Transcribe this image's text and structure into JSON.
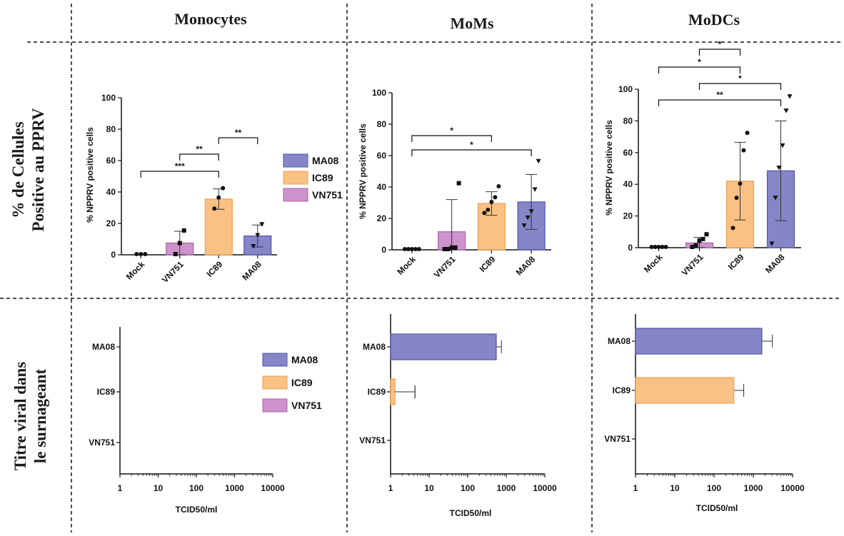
{
  "headers": {
    "columns": [
      "Monocytes",
      "MoMs",
      "MoDCs"
    ],
    "row_top": [
      "% de Cellules",
      "Positive au PPRV"
    ],
    "row_bottom": [
      "Titre viral dans",
      "le surnageant"
    ]
  },
  "colors": {
    "MA08": "#8585c8",
    "IC89": "#f9c184",
    "VN751": "#cc93cc",
    "MA08_edge": "#5555a8",
    "IC89_edge": "#f0a050",
    "VN751_edge": "#a865a8"
  },
  "legend": [
    "MA08",
    "IC89",
    "VN751"
  ],
  "chart_data": [
    {
      "type": "bar",
      "panel": "Monocytes",
      "ylabel": "% NPPRV positive cells",
      "ylim": [
        0,
        100
      ],
      "yticks": [
        "0",
        "20",
        "40",
        "60",
        "80",
        "100"
      ],
      "categories": [
        "Mock",
        "VN751",
        "IC89",
        "MA08"
      ],
      "values": [
        0,
        7.5,
        35.5,
        12
      ],
      "error": [
        0,
        7.5,
        6.5,
        7
      ],
      "points": [
        [
          0,
          0,
          0
        ],
        [
          0,
          7,
          15
        ],
        [
          29,
          36,
          42
        ],
        [
          5,
          12,
          19
        ]
      ],
      "markers": [
        "circle",
        "square",
        "circle",
        "triangle"
      ],
      "significance": [
        {
          "from": "VN751",
          "to": "IC89",
          "label": "**"
        },
        {
          "from": "IC89",
          "to": "MA08",
          "label": "**"
        },
        {
          "from": "Mock",
          "to": "IC89",
          "label": "***"
        }
      ]
    },
    {
      "type": "bar",
      "panel": "MoMs",
      "ylabel": "% NPPRV positive cells",
      "ylim": [
        0,
        100
      ],
      "yticks": [
        "0",
        "20",
        "40",
        "60",
        "80",
        "100"
      ],
      "categories": [
        "Mock",
        "VN751",
        "IC89",
        "MA08"
      ],
      "values": [
        0,
        11.5,
        29.5,
        30.5
      ],
      "error": [
        0,
        20.5,
        7.5,
        17.5
      ],
      "points": [
        [
          0,
          0,
          0,
          0,
          0
        ],
        [
          0,
          0,
          1,
          1,
          42
        ],
        [
          23,
          25,
          30,
          33,
          40
        ],
        [
          15,
          20,
          24,
          38,
          56
        ]
      ],
      "markers": [
        "circle",
        "square",
        "circle",
        "triangle"
      ],
      "significance": [
        {
          "from": "Mock",
          "to": "IC89",
          "label": "*"
        },
        {
          "from": "Mock",
          "to": "MA08",
          "label": "*"
        }
      ]
    },
    {
      "type": "bar",
      "panel": "MoDCs",
      "ylabel": "% NPPRV positive cells",
      "ylim": [
        0,
        100
      ],
      "yticks": [
        "0",
        "20",
        "40",
        "60",
        "80",
        "100"
      ],
      "categories": [
        "Mock",
        "VN751",
        "IC89",
        "MA08"
      ],
      "values": [
        0,
        3,
        42,
        48.5
      ],
      "error": [
        0,
        3.5,
        24.5,
        31.5
      ],
      "points": [
        [
          0,
          0,
          0,
          0,
          0
        ],
        [
          0,
          1,
          4,
          5,
          8
        ],
        [
          12,
          31,
          40,
          61,
          72
        ],
        [
          2,
          31,
          50,
          64,
          86,
          95
        ]
      ],
      "markers": [
        "circle",
        "square",
        "circle",
        "triangle"
      ],
      "significance": [
        {
          "from": "VN751",
          "to": "IC89",
          "label": "*"
        },
        {
          "from": "Mock",
          "to": "IC89",
          "label": "*"
        },
        {
          "from": "VN751",
          "to": "MA08",
          "label": "*"
        },
        {
          "from": "Mock",
          "to": "MA08",
          "label": "**"
        }
      ]
    },
    {
      "type": "bar",
      "orientation": "horizontal",
      "panel": "Monocytes",
      "xlabel": "TCID50/ml",
      "xscale": "log",
      "xlim": [
        1,
        10000
      ],
      "xticks": [
        "1",
        "10",
        "100",
        "1000",
        "10000"
      ],
      "categories": [
        "MA08",
        "IC89",
        "VN751"
      ],
      "values": [
        null,
        null,
        null
      ],
      "error": [
        null,
        null,
        null
      ]
    },
    {
      "type": "bar",
      "orientation": "horizontal",
      "panel": "MoMs",
      "xlabel": "TCID50/ml",
      "xscale": "log",
      "xlim": [
        1,
        10000
      ],
      "xticks": [
        "1",
        "10",
        "100",
        "1000",
        "10000"
      ],
      "categories": [
        "MA08",
        "IC89",
        "VN751"
      ],
      "values": [
        550,
        1.3,
        null
      ],
      "error": [
        200,
        3,
        null
      ]
    },
    {
      "type": "bar",
      "orientation": "horizontal",
      "panel": "MoDCs",
      "xlabel": "TCID50/ml",
      "xscale": "log",
      "xlim": [
        1,
        10000
      ],
      "xticks": [
        "1",
        "10",
        "100",
        "1000",
        "10000"
      ],
      "categories": [
        "MA08",
        "IC89",
        "VN751"
      ],
      "values": [
        1650,
        320,
        null
      ],
      "error": [
        1400,
        250,
        null
      ]
    }
  ]
}
